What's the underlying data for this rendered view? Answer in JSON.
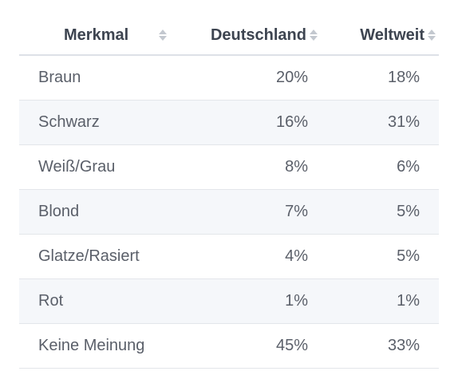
{
  "table": {
    "columns": [
      {
        "label": "Merkmal",
        "sort_icon": "sort-icon"
      },
      {
        "label": "Deutschland",
        "sort_icon": "sort-icon"
      },
      {
        "label": "Weltweit",
        "sort_icon": "sort-icon"
      }
    ],
    "rows": [
      {
        "merkmal": "Braun",
        "deutschland": "20%",
        "weltweit": "18%"
      },
      {
        "merkmal": "Schwarz",
        "deutschland": "16%",
        "weltweit": "31%"
      },
      {
        "merkmal": "Weiß/Grau",
        "deutschland": "8%",
        "weltweit": "6%"
      },
      {
        "merkmal": "Blond",
        "deutschland": "7%",
        "weltweit": "5%"
      },
      {
        "merkmal": "Glatze/Rasiert",
        "deutschland": "4%",
        "weltweit": "5%"
      },
      {
        "merkmal": "Rot",
        "deutschland": "1%",
        "weltweit": "1%"
      },
      {
        "merkmal": "Keine Meinung",
        "deutschland": "45%",
        "weltweit": "33%"
      }
    ]
  },
  "colors": {
    "header_text": "#3d4450",
    "cell_text": "#5a5f69",
    "stripe": "#f5f7fa",
    "sort_icon": "#c3c8cf"
  }
}
